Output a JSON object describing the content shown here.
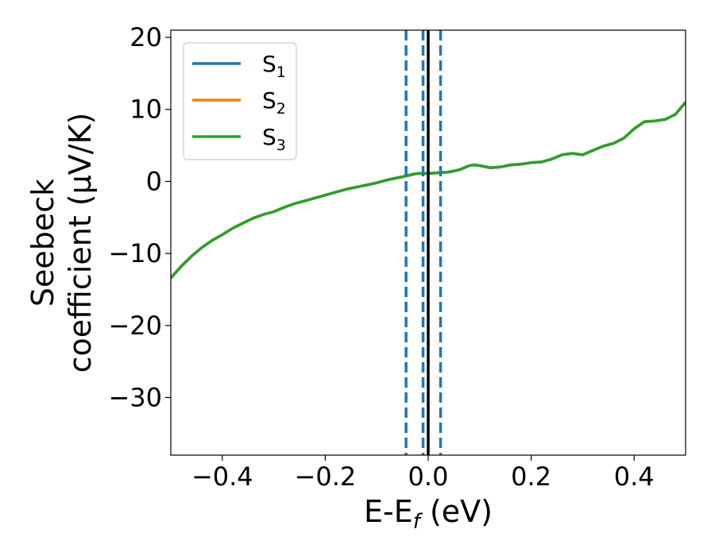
{
  "chart_data": {
    "type": "line",
    "title": "",
    "xlabel": {
      "main": "E-E",
      "sub": "f",
      "tail": " (eV)"
    },
    "ylabel_lines": [
      "Seebeck",
      "coefficient  (μV/K)"
    ],
    "xlim": [
      -0.5,
      0.5
    ],
    "ylim": [
      -38,
      21
    ],
    "xticks": [
      -0.4,
      -0.2,
      0.0,
      0.2,
      0.4
    ],
    "xtick_labels": [
      "−0.4",
      "−0.2",
      "0.0",
      "0.2",
      "0.4"
    ],
    "yticks": [
      -30,
      -20,
      -10,
      0,
      10,
      20
    ],
    "ytick_labels": [
      "−30",
      "−20",
      "−10",
      "0",
      "10",
      "20"
    ],
    "grid": false,
    "legend_position": "top-left",
    "x": [
      -0.5,
      -0.48,
      -0.46,
      -0.44,
      -0.42,
      -0.4,
      -0.38,
      -0.36,
      -0.34,
      -0.32,
      -0.3,
      -0.28,
      -0.26,
      -0.24,
      -0.22,
      -0.2,
      -0.18,
      -0.16,
      -0.14,
      -0.12,
      -0.1,
      -0.08,
      -0.06,
      -0.04,
      -0.03,
      -0.02,
      -0.01,
      0.0,
      0.02,
      0.04,
      0.06,
      0.08,
      0.09,
      0.1,
      0.12,
      0.14,
      0.16,
      0.18,
      0.2,
      0.22,
      0.24,
      0.26,
      0.28,
      0.3,
      0.32,
      0.34,
      0.36,
      0.38,
      0.4,
      0.42,
      0.44,
      0.46,
      0.48,
      0.5
    ],
    "series": [
      {
        "name": "S",
        "sub": "1",
        "color": "#1f77b4",
        "values": [
          -13.4,
          -11.8,
          -10.4,
          -9.2,
          -8.2,
          -7.4,
          -6.5,
          -5.8,
          -5.1,
          -4.6,
          -4.2,
          -3.6,
          -3.1,
          -2.7,
          -2.3,
          -1.9,
          -1.5,
          -1.1,
          -0.8,
          -0.5,
          -0.2,
          0.2,
          0.5,
          0.8,
          1.0,
          1.1,
          1.1,
          1.1,
          1.2,
          1.3,
          1.6,
          2.2,
          2.3,
          2.2,
          1.9,
          2.0,
          2.3,
          2.4,
          2.6,
          2.7,
          3.1,
          3.7,
          3.9,
          3.7,
          4.3,
          4.9,
          5.3,
          6.0,
          7.3,
          8.3,
          8.4,
          8.6,
          9.3,
          11.0
        ]
      },
      {
        "name": "S",
        "sub": "2",
        "color": "#ff7f0e",
        "values": [
          -13.4,
          -11.8,
          -10.4,
          -9.2,
          -8.2,
          -7.4,
          -6.5,
          -5.8,
          -5.1,
          -4.6,
          -4.2,
          -3.6,
          -3.1,
          -2.7,
          -2.3,
          -1.9,
          -1.5,
          -1.1,
          -0.8,
          -0.5,
          -0.2,
          0.2,
          0.5,
          0.8,
          1.0,
          1.1,
          1.1,
          1.1,
          1.2,
          1.3,
          1.6,
          2.2,
          2.3,
          2.2,
          1.9,
          2.0,
          2.3,
          2.4,
          2.6,
          2.7,
          3.1,
          3.7,
          3.9,
          3.7,
          4.3,
          4.9,
          5.3,
          6.0,
          7.3,
          8.3,
          8.4,
          8.6,
          9.3,
          11.0
        ]
      },
      {
        "name": "S",
        "sub": "3",
        "color": "#2ca02c",
        "values": [
          -13.4,
          -11.8,
          -10.4,
          -9.2,
          -8.2,
          -7.4,
          -6.5,
          -5.8,
          -5.1,
          -4.6,
          -4.2,
          -3.6,
          -3.1,
          -2.7,
          -2.3,
          -1.9,
          -1.5,
          -1.1,
          -0.8,
          -0.5,
          -0.2,
          0.2,
          0.5,
          0.8,
          1.0,
          1.1,
          1.1,
          1.1,
          1.2,
          1.3,
          1.6,
          2.2,
          2.3,
          2.2,
          1.9,
          2.0,
          2.3,
          2.4,
          2.6,
          2.7,
          3.1,
          3.7,
          3.9,
          3.7,
          4.3,
          4.9,
          5.3,
          6.0,
          7.3,
          8.3,
          8.4,
          8.6,
          9.3,
          11.0
        ]
      }
    ],
    "vertical_lines": [
      {
        "x": -0.043,
        "style": "dashed",
        "color": "#1f77b4"
      },
      {
        "x": -0.01,
        "style": "dashed",
        "color": "#1f77b4"
      },
      {
        "x": 0.024,
        "style": "dashed",
        "color": "#1f77b4"
      },
      {
        "x": 0.0,
        "style": "solid",
        "color": "#000000"
      }
    ]
  }
}
